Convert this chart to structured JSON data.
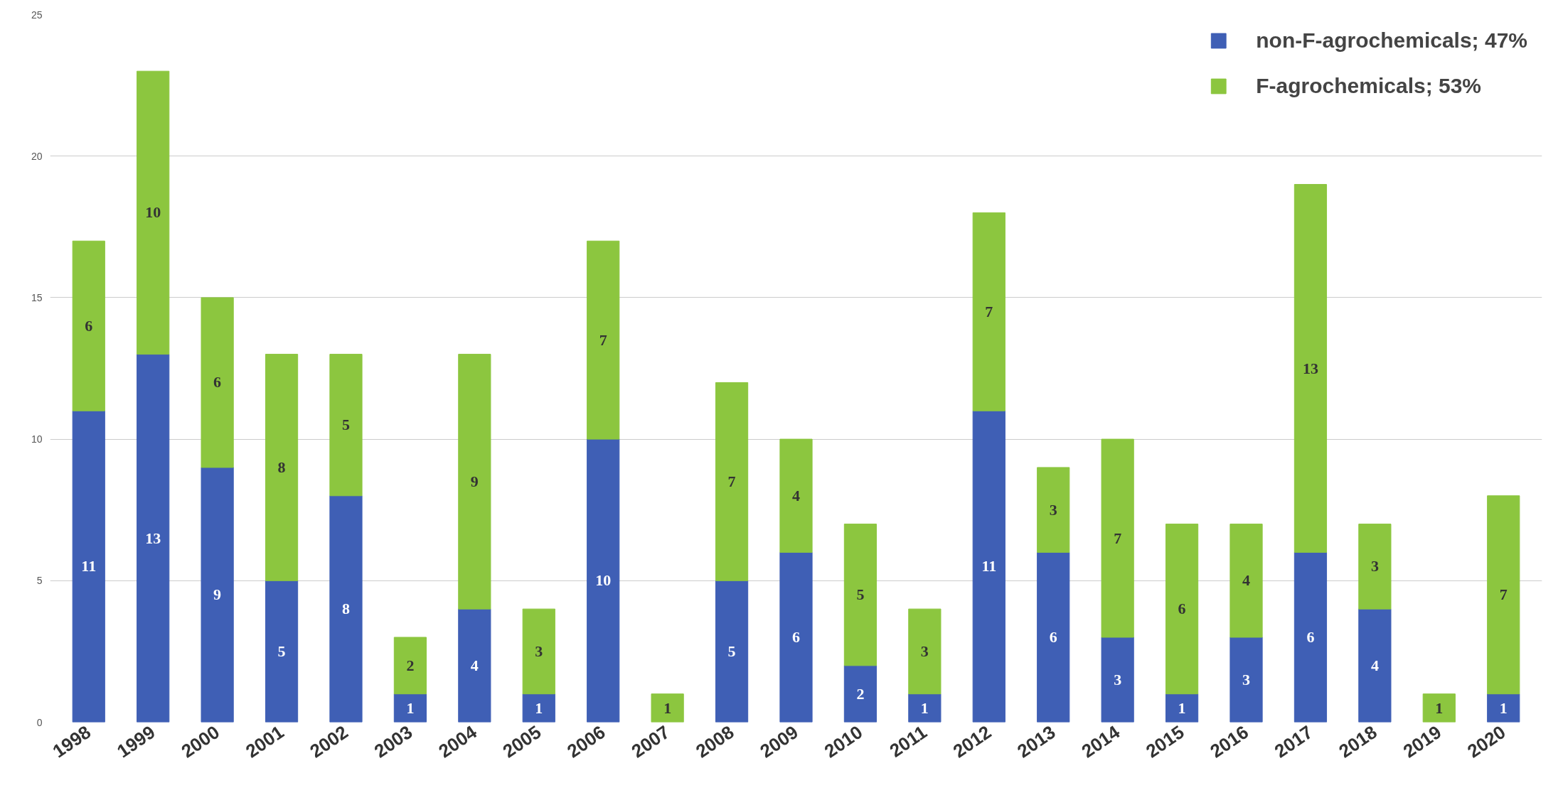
{
  "chart_data": {
    "type": "bar",
    "stacked": true,
    "categories": [
      "1998",
      "1999",
      "2000",
      "2001",
      "2002",
      "2003",
      "2004",
      "2005",
      "2006",
      "2007",
      "2008",
      "2009",
      "2010",
      "2011",
      "2012",
      "2013",
      "2014",
      "2015",
      "2016",
      "2017",
      "2018",
      "2019",
      "2020"
    ],
    "series": [
      {
        "name": "non-F-agrochemicals; 47%",
        "color": "#3f5fb5",
        "values": [
          11,
          13,
          9,
          5,
          8,
          1,
          4,
          1,
          10,
          null,
          5,
          6,
          2,
          1,
          11,
          6,
          3,
          1,
          3,
          6,
          4,
          null,
          1
        ]
      },
      {
        "name": "F-agrochemicals; 53%",
        "color": "#8cc63f",
        "values": [
          6,
          10,
          6,
          8,
          5,
          2,
          9,
          3,
          7,
          1,
          7,
          4,
          5,
          3,
          7,
          3,
          7,
          6,
          4,
          13,
          3,
          1,
          7
        ]
      }
    ],
    "ylim": [
      0,
      25
    ],
    "yticks": [
      0,
      5,
      10,
      15,
      20,
      25
    ],
    "grid": "y",
    "legend": "top right",
    "data_labels": true
  }
}
